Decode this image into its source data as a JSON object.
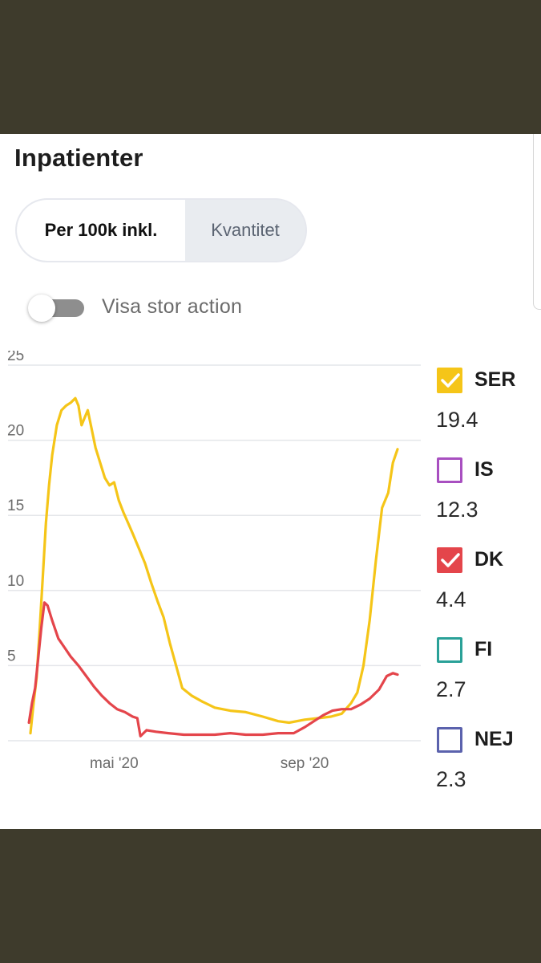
{
  "panel": {
    "title": "Inpatienter"
  },
  "segmented": {
    "options": [
      "Per 100k inkl.",
      "Kvantitet"
    ],
    "selected": "Per 100k inkl."
  },
  "toggle": {
    "label": "Visa stor action",
    "on": false
  },
  "legend": [
    {
      "name": "SER",
      "value": "19.4",
      "checked": true,
      "color": "#f5c518"
    },
    {
      "name": "IS",
      "value": "12.3",
      "checked": false,
      "color": "#a84fc0"
    },
    {
      "name": "DK",
      "value": "4.4",
      "checked": true,
      "color": "#e4454b"
    },
    {
      "name": "FI",
      "value": "2.7",
      "checked": false,
      "color": "#2aa198"
    },
    {
      "name": "NEJ",
      "value": "2.3",
      "checked": false,
      "color": "#5b62ad"
    }
  ],
  "chart_data": {
    "type": "line",
    "title": "",
    "xlabel": "",
    "ylabel": "",
    "ylim": [
      0,
      25
    ],
    "yticks": [
      "25",
      "20",
      "15",
      "10",
      "5"
    ],
    "xticks": [
      {
        "label": "mai '20",
        "date": "2020-05-01"
      },
      {
        "label": "sep '20",
        "date": "2020-09-01"
      }
    ],
    "xlim": [
      "2020-03-08",
      "2020-11-15"
    ],
    "grid": true,
    "legend_position": "right",
    "series": [
      {
        "name": "SER",
        "color": "#f5c518",
        "points": [
          [
            "2020-03-08",
            0.5
          ],
          [
            "2020-03-10",
            2.5
          ],
          [
            "2020-03-12",
            4.2
          ],
          [
            "2020-03-14",
            7.5
          ],
          [
            "2020-03-16",
            11.0
          ],
          [
            "2020-03-18",
            14.5
          ],
          [
            "2020-03-20",
            17.0
          ],
          [
            "2020-03-22",
            19.0
          ],
          [
            "2020-03-25",
            21.0
          ],
          [
            "2020-03-28",
            22.0
          ],
          [
            "2020-03-31",
            22.3
          ],
          [
            "2020-04-03",
            22.5
          ],
          [
            "2020-04-06",
            22.8
          ],
          [
            "2020-04-08",
            22.3
          ],
          [
            "2020-04-10",
            21.0
          ],
          [
            "2020-04-12",
            21.5
          ],
          [
            "2020-04-14",
            22.0
          ],
          [
            "2020-04-16",
            21.0
          ],
          [
            "2020-04-19",
            19.5
          ],
          [
            "2020-04-22",
            18.5
          ],
          [
            "2020-04-25",
            17.5
          ],
          [
            "2020-04-28",
            17.0
          ],
          [
            "2020-05-01",
            17.2
          ],
          [
            "2020-05-04",
            16.0
          ],
          [
            "2020-05-07",
            15.2
          ],
          [
            "2020-05-10",
            14.5
          ],
          [
            "2020-05-13",
            13.8
          ],
          [
            "2020-05-17",
            12.8
          ],
          [
            "2020-05-21",
            11.8
          ],
          [
            "2020-05-25",
            10.5
          ],
          [
            "2020-05-29",
            9.3
          ],
          [
            "2020-06-02",
            8.2
          ],
          [
            "2020-06-06",
            6.5
          ],
          [
            "2020-06-10",
            5.0
          ],
          [
            "2020-06-14",
            3.5
          ],
          [
            "2020-06-20",
            3.0
          ],
          [
            "2020-06-27",
            2.6
          ],
          [
            "2020-07-05",
            2.2
          ],
          [
            "2020-07-15",
            2.0
          ],
          [
            "2020-07-25",
            1.9
          ],
          [
            "2020-08-05",
            1.6
          ],
          [
            "2020-08-15",
            1.3
          ],
          [
            "2020-08-22",
            1.2
          ],
          [
            "2020-09-01",
            1.4
          ],
          [
            "2020-09-10",
            1.5
          ],
          [
            "2020-09-18",
            1.6
          ],
          [
            "2020-09-25",
            1.8
          ],
          [
            "2020-10-01",
            2.5
          ],
          [
            "2020-10-05",
            3.2
          ],
          [
            "2020-10-09",
            5.0
          ],
          [
            "2020-10-13",
            8.0
          ],
          [
            "2020-10-17",
            12.0
          ],
          [
            "2020-10-21",
            15.5
          ],
          [
            "2020-10-25",
            16.5
          ],
          [
            "2020-10-28",
            18.5
          ],
          [
            "2020-10-31",
            19.4
          ]
        ]
      },
      {
        "name": "DK",
        "color": "#e4454b",
        "points": [
          [
            "2020-03-07",
            1.2
          ],
          [
            "2020-03-09",
            2.5
          ],
          [
            "2020-03-11",
            3.5
          ],
          [
            "2020-03-13",
            5.5
          ],
          [
            "2020-03-15",
            7.5
          ],
          [
            "2020-03-17",
            9.2
          ],
          [
            "2020-03-19",
            9.0
          ],
          [
            "2020-03-22",
            8.0
          ],
          [
            "2020-03-26",
            6.8
          ],
          [
            "2020-03-30",
            6.2
          ],
          [
            "2020-04-03",
            5.6
          ],
          [
            "2020-04-08",
            5.0
          ],
          [
            "2020-04-13",
            4.3
          ],
          [
            "2020-04-18",
            3.6
          ],
          [
            "2020-04-23",
            3.0
          ],
          [
            "2020-04-28",
            2.5
          ],
          [
            "2020-05-03",
            2.1
          ],
          [
            "2020-05-08",
            1.9
          ],
          [
            "2020-05-13",
            1.6
          ],
          [
            "2020-05-16",
            1.5
          ],
          [
            "2020-05-18",
            0.3
          ],
          [
            "2020-05-22",
            0.7
          ],
          [
            "2020-05-28",
            0.6
          ],
          [
            "2020-06-05",
            0.5
          ],
          [
            "2020-06-15",
            0.4
          ],
          [
            "2020-06-25",
            0.4
          ],
          [
            "2020-07-05",
            0.4
          ],
          [
            "2020-07-15",
            0.5
          ],
          [
            "2020-07-25",
            0.4
          ],
          [
            "2020-08-05",
            0.4
          ],
          [
            "2020-08-15",
            0.5
          ],
          [
            "2020-08-25",
            0.5
          ],
          [
            "2020-09-01",
            0.9
          ],
          [
            "2020-09-07",
            1.3
          ],
          [
            "2020-09-13",
            1.7
          ],
          [
            "2020-09-19",
            2.0
          ],
          [
            "2020-09-25",
            2.1
          ],
          [
            "2020-10-01",
            2.1
          ],
          [
            "2020-10-07",
            2.4
          ],
          [
            "2020-10-13",
            2.8
          ],
          [
            "2020-10-19",
            3.4
          ],
          [
            "2020-10-24",
            4.3
          ],
          [
            "2020-10-28",
            4.5
          ],
          [
            "2020-10-31",
            4.4
          ]
        ]
      }
    ]
  }
}
